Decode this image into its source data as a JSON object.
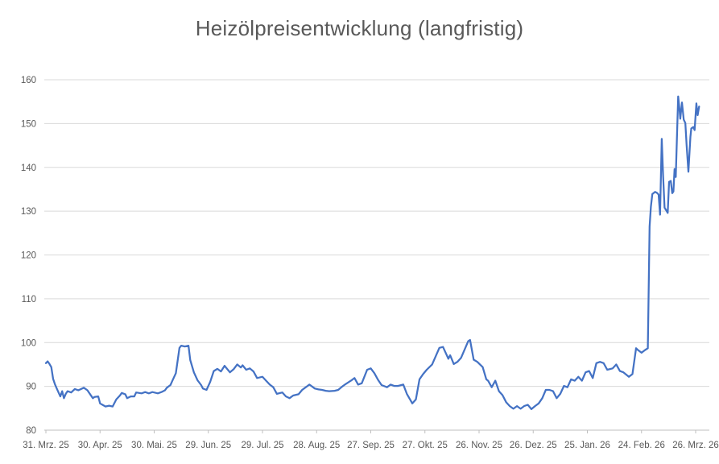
{
  "title": "Heizölpreisentwicklung (langfristig)",
  "colors": {
    "line": "#4472C4",
    "gridline": "#D9D9D9",
    "axis_line": "#BFBFBF",
    "text": "#595959",
    "background": "#FFFFFF"
  },
  "chart_data": {
    "type": "line",
    "title": "Heizölpreisentwicklung (langfristig)",
    "xlabel": "",
    "ylabel": "",
    "ylim": [
      80,
      160
    ],
    "y_tick_step": 10,
    "y_tick_labels": [
      "80",
      "90",
      "100",
      "110",
      "120",
      "130",
      "140",
      "150",
      "160"
    ],
    "grid": true,
    "legend": "none",
    "x_tick_labels": [
      "31. Mrz. 25",
      "30. Apr. 25",
      "30. Mai. 25",
      "29. Jun. 25",
      "29. Jul. 25",
      "28. Aug. 25",
      "27. Sep. 25",
      "27. Okt. 25",
      "26. Nov. 25",
      "26. Dez. 25",
      "25. Jan. 26",
      "24. Feb. 26",
      "26. Mrz. 26"
    ],
    "x_tick_days": [
      0,
      30,
      60,
      90,
      120,
      150,
      180,
      210,
      240,
      270,
      300,
      330,
      360
    ],
    "x_unit": "Tage ab 31. Mrz. 25",
    "series": [
      {
        "color": "#4472C4",
        "points": [
          [
            0,
            95.3
          ],
          [
            1,
            95.7
          ],
          [
            2,
            95.1
          ],
          [
            3,
            94.4
          ],
          [
            4,
            91.7
          ],
          [
            5,
            90.5
          ],
          [
            6,
            89.5
          ],
          [
            7,
            88.6
          ],
          [
            8,
            87.7
          ],
          [
            9,
            88.9
          ],
          [
            10,
            87.3
          ],
          [
            11,
            88.3
          ],
          [
            12,
            88.9
          ],
          [
            14,
            88.6
          ],
          [
            16,
            89.4
          ],
          [
            18,
            89.1
          ],
          [
            21,
            89.7
          ],
          [
            23,
            89.1
          ],
          [
            24,
            88.5
          ],
          [
            26,
            87.3
          ],
          [
            27,
            87.6
          ],
          [
            29,
            87.7
          ],
          [
            30,
            86.1
          ],
          [
            33,
            85.4
          ],
          [
            35,
            85.6
          ],
          [
            37,
            85.4
          ],
          [
            39,
            87.0
          ],
          [
            41,
            87.9
          ],
          [
            42,
            88.5
          ],
          [
            44,
            88.2
          ],
          [
            45,
            87.3
          ],
          [
            47,
            87.7
          ],
          [
            49,
            87.7
          ],
          [
            50,
            88.6
          ],
          [
            53,
            88.4
          ],
          [
            55,
            88.7
          ],
          [
            57,
            88.4
          ],
          [
            59,
            88.7
          ],
          [
            62,
            88.4
          ],
          [
            64,
            88.7
          ],
          [
            66,
            89.1
          ],
          [
            67,
            89.7
          ],
          [
            69,
            90.3
          ],
          [
            70,
            91.2
          ],
          [
            72,
            93.0
          ],
          [
            74,
            98.8
          ],
          [
            75,
            99.3
          ],
          [
            77,
            99.1
          ],
          [
            79,
            99.3
          ],
          [
            80,
            96.0
          ],
          [
            82,
            93.2
          ],
          [
            84,
            91.4
          ],
          [
            86,
            90.3
          ],
          [
            87,
            89.5
          ],
          [
            89,
            89.2
          ],
          [
            91,
            91.0
          ],
          [
            93,
            93.5
          ],
          [
            95,
            94.0
          ],
          [
            97,
            93.4
          ],
          [
            99,
            94.7
          ],
          [
            102,
            93.2
          ],
          [
            104,
            93.9
          ],
          [
            106,
            95.0
          ],
          [
            108,
            94.3
          ],
          [
            109,
            94.8
          ],
          [
            111,
            93.8
          ],
          [
            113,
            94.1
          ],
          [
            115,
            93.4
          ],
          [
            117,
            91.9
          ],
          [
            120,
            92.2
          ],
          [
            122,
            91.3
          ],
          [
            124,
            90.4
          ],
          [
            126,
            89.8
          ],
          [
            128,
            88.3
          ],
          [
            131,
            88.6
          ],
          [
            133,
            87.7
          ],
          [
            135,
            87.3
          ],
          [
            137,
            87.9
          ],
          [
            140,
            88.2
          ],
          [
            142,
            89.2
          ],
          [
            144,
            89.8
          ],
          [
            146,
            90.4
          ],
          [
            149,
            89.5
          ],
          [
            151,
            89.3
          ],
          [
            153,
            89.2
          ],
          [
            155,
            89.0
          ],
          [
            157,
            88.9
          ],
          [
            160,
            89.0
          ],
          [
            162,
            89.2
          ],
          [
            164,
            89.9
          ],
          [
            166,
            90.5
          ],
          [
            169,
            91.3
          ],
          [
            171,
            91.9
          ],
          [
            173,
            90.4
          ],
          [
            175,
            90.7
          ],
          [
            178,
            93.8
          ],
          [
            180,
            94.1
          ],
          [
            182,
            93.0
          ],
          [
            184,
            91.5
          ],
          [
            186,
            90.3
          ],
          [
            189,
            89.8
          ],
          [
            191,
            90.4
          ],
          [
            193,
            90.1
          ],
          [
            195,
            90.1
          ],
          [
            198,
            90.4
          ],
          [
            200,
            88.3
          ],
          [
            203,
            86.1
          ],
          [
            205,
            87.0
          ],
          [
            207,
            91.6
          ],
          [
            209,
            92.8
          ],
          [
            211,
            93.8
          ],
          [
            214,
            95.0
          ],
          [
            218,
            98.8
          ],
          [
            220,
            99.0
          ],
          [
            223,
            96.3
          ],
          [
            224,
            97.1
          ],
          [
            226,
            95.1
          ],
          [
            228,
            95.6
          ],
          [
            230,
            96.5
          ],
          [
            234,
            100.3
          ],
          [
            235,
            100.6
          ],
          [
            237,
            96.1
          ],
          [
            239,
            95.6
          ],
          [
            242,
            94.4
          ],
          [
            244,
            91.6
          ],
          [
            245,
            91.3
          ],
          [
            247,
            89.8
          ],
          [
            249,
            91.3
          ],
          [
            251,
            88.9
          ],
          [
            253,
            88.0
          ],
          [
            255,
            86.4
          ],
          [
            257,
            85.5
          ],
          [
            259,
            84.9
          ],
          [
            261,
            85.5
          ],
          [
            263,
            84.9
          ],
          [
            265,
            85.5
          ],
          [
            267,
            85.8
          ],
          [
            269,
            84.8
          ],
          [
            271,
            85.5
          ],
          [
            273,
            86.1
          ],
          [
            275,
            87.3
          ],
          [
            277,
            89.2
          ],
          [
            279,
            89.2
          ],
          [
            281,
            88.9
          ],
          [
            283,
            87.3
          ],
          [
            285,
            88.3
          ],
          [
            287,
            90.1
          ],
          [
            289,
            89.8
          ],
          [
            291,
            91.6
          ],
          [
            293,
            91.3
          ],
          [
            295,
            92.2
          ],
          [
            297,
            91.3
          ],
          [
            299,
            93.2
          ],
          [
            301,
            93.5
          ],
          [
            303,
            91.9
          ],
          [
            305,
            95.3
          ],
          [
            307,
            95.6
          ],
          [
            309,
            95.3
          ],
          [
            311,
            93.8
          ],
          [
            314,
            94.1
          ],
          [
            316,
            95.0
          ],
          [
            318,
            93.5
          ],
          [
            320,
            93.2
          ],
          [
            323,
            92.2
          ],
          [
            325,
            92.8
          ],
          [
            327,
            98.7
          ],
          [
            328,
            98.3
          ],
          [
            330,
            97.7
          ],
          [
            332,
            98.3
          ],
          [
            333.5,
            98.7
          ],
          [
            334.5,
            126.5
          ],
          [
            335.2,
            131.0
          ],
          [
            336,
            133.9
          ],
          [
            337.5,
            134.4
          ],
          [
            338.5,
            134.2
          ],
          [
            339.5,
            133.8
          ],
          [
            340.3,
            129.2
          ],
          [
            341.2,
            146.5
          ],
          [
            342,
            138.0
          ],
          [
            342.8,
            130.8
          ],
          [
            343.8,
            130.1
          ],
          [
            344.5,
            129.6
          ],
          [
            345.3,
            136.7
          ],
          [
            346.2,
            136.9
          ],
          [
            347,
            134.1
          ],
          [
            347.7,
            134.5
          ],
          [
            348.3,
            139.6
          ],
          [
            349,
            137.8
          ],
          [
            349.6,
            146.4
          ],
          [
            350.3,
            156.2
          ],
          [
            351,
            153.5
          ],
          [
            351.5,
            151.1
          ],
          [
            352.4,
            154.8
          ],
          [
            353.4,
            150.9
          ],
          [
            354.3,
            150.1
          ],
          [
            355,
            145.0
          ],
          [
            356,
            139.0
          ],
          [
            357.1,
            147.0
          ],
          [
            357.6,
            148.9
          ],
          [
            358.7,
            149.2
          ],
          [
            359.4,
            148.5
          ],
          [
            360.4,
            154.6
          ],
          [
            361.1,
            151.9
          ],
          [
            361.9,
            153.9
          ]
        ]
      }
    ]
  }
}
